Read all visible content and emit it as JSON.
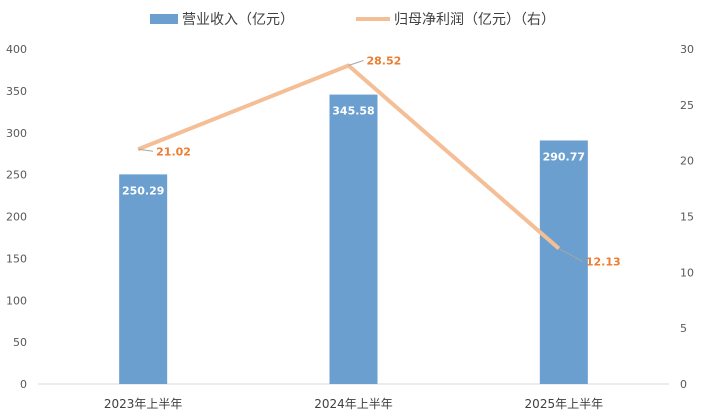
{
  "chart_data": {
    "type": "bar+line",
    "categories": [
      "2023年上半年",
      "2024年上半年",
      "2025年上半年"
    ],
    "series": [
      {
        "name": "营业收入（亿元）",
        "type": "bar",
        "axis": "left",
        "values": [
          250.29,
          345.58,
          290.77
        ],
        "labels": [
          "250.29",
          "345.58",
          "290.77"
        ],
        "color": "#6a9fcf"
      },
      {
        "name": "归母净利润（亿元）（右）",
        "type": "line",
        "axis": "right",
        "values": [
          21.02,
          28.52,
          12.13
        ],
        "labels": [
          "21.02",
          "28.52",
          "12.13"
        ],
        "color": "#f4bf96",
        "label_color": "#ed7d31"
      }
    ],
    "left_axis": {
      "ylim": [
        0,
        400
      ],
      "ticks": [
        "0",
        "50",
        "100",
        "150",
        "200",
        "250",
        "300",
        "350",
        "400"
      ]
    },
    "right_axis": {
      "ylim": [
        0,
        30
      ],
      "ticks": [
        "0",
        "5",
        "10",
        "15",
        "20",
        "25",
        "30"
      ]
    },
    "legend": {
      "position": "top"
    },
    "grid": false
  }
}
